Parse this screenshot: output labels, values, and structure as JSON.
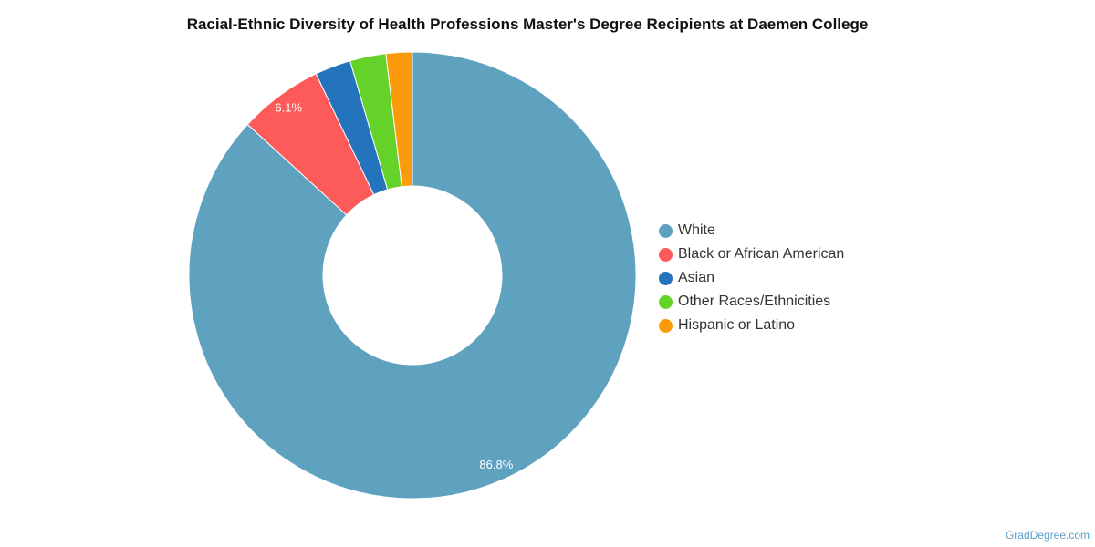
{
  "chart_data": {
    "type": "pie",
    "title": "Racial-Ethnic Diversity of Health Professions Master's Degree Recipients at Daemen College",
    "legend_position": "right",
    "slices": [
      {
        "label": "White",
        "value": 86.8,
        "color": "#5fa2bf",
        "data_label": "86.8%"
      },
      {
        "label": "Black or African American",
        "value": 6.1,
        "color": "#fd5a5a",
        "data_label": "6.1%"
      },
      {
        "label": "Asian",
        "value": 2.6,
        "color": "#2474bd",
        "data_label": ""
      },
      {
        "label": "Other Races/Ethnicities",
        "value": 2.6,
        "color": "#64d228",
        "data_label": ""
      },
      {
        "label": "Hispanic or Latino",
        "value": 1.9,
        "color": "#fb9a0a",
        "data_label": ""
      }
    ]
  },
  "credit": "GradDegree.com"
}
